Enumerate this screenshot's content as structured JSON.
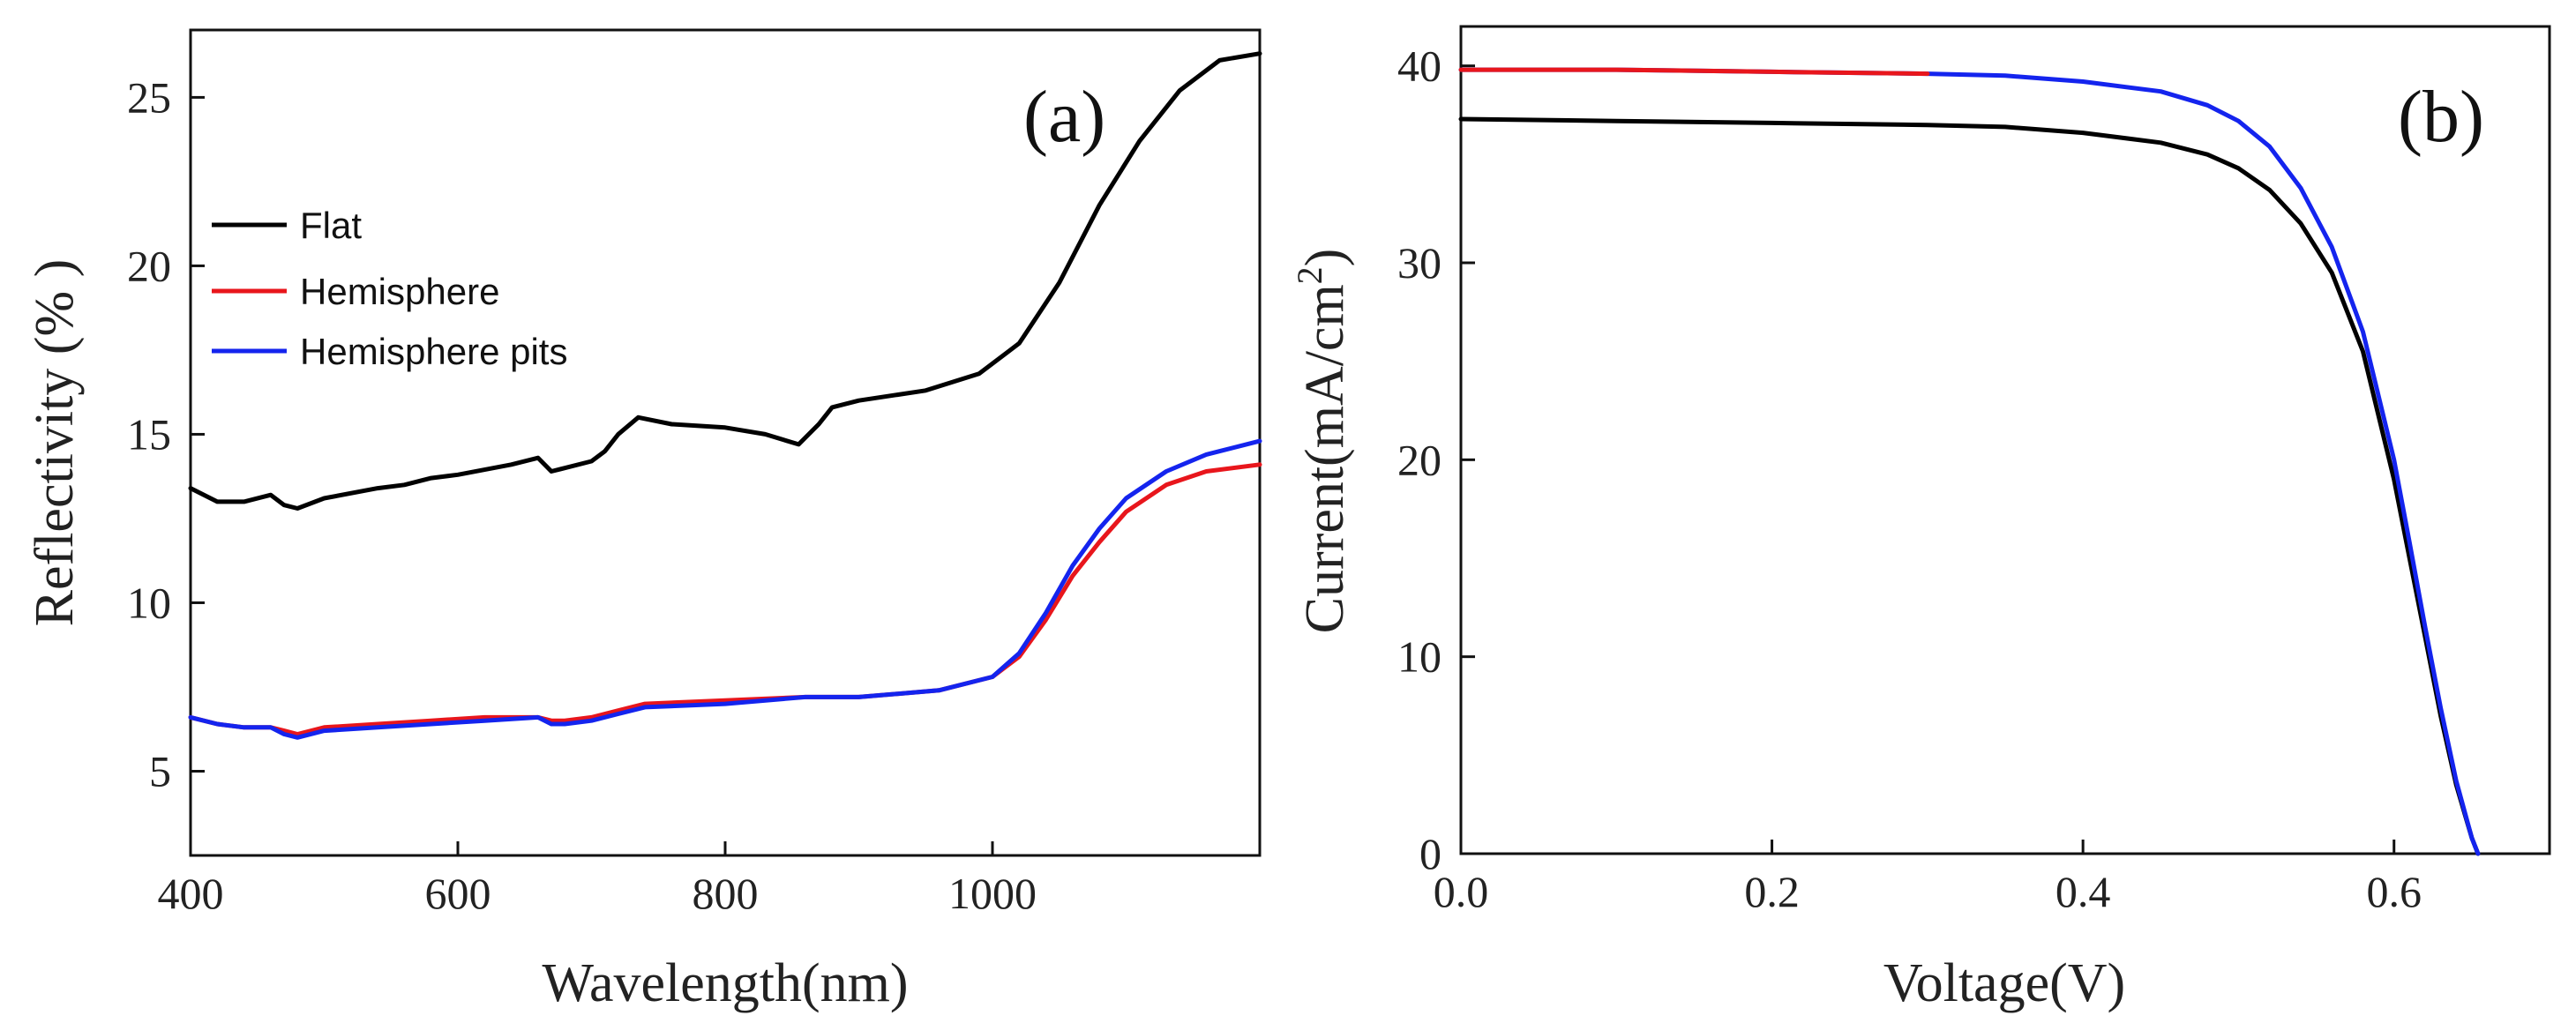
{
  "chart_data": [
    {
      "type": "line",
      "panel_label": "(a)",
      "title": "",
      "xlabel": "Wavelength(nm)",
      "ylabel": "Reflectivity (% )",
      "xlim": [
        400,
        1200
      ],
      "ylim": [
        2.5,
        27
      ],
      "xticks": [
        400,
        600,
        800,
        1000
      ],
      "xtick_labels": [
        "400",
        "600",
        "800",
        "1000"
      ],
      "yticks": [
        5,
        10,
        15,
        20,
        25
      ],
      "ytick_labels": [
        "5",
        "10",
        "15",
        "20",
        "25"
      ],
      "grid": false,
      "legend_position": "middle-left",
      "series": [
        {
          "name": "Flat",
          "color": "#000000",
          "x": [
            400,
            420,
            440,
            460,
            470,
            480,
            500,
            540,
            560,
            580,
            600,
            640,
            660,
            670,
            680,
            700,
            710,
            720,
            735,
            760,
            800,
            830,
            855,
            870,
            880,
            900,
            950,
            990,
            1020,
            1050,
            1080,
            1110,
            1140,
            1170,
            1200
          ],
          "values": [
            13.4,
            13.0,
            13.0,
            13.2,
            12.9,
            12.8,
            13.1,
            13.4,
            13.5,
            13.7,
            13.8,
            14.1,
            14.3,
            13.9,
            14.0,
            14.2,
            14.5,
            15.0,
            15.5,
            15.3,
            15.2,
            15.0,
            14.7,
            15.3,
            15.8,
            16.0,
            16.3,
            16.8,
            17.7,
            19.5,
            21.8,
            23.7,
            25.2,
            26.1,
            26.3
          ]
        },
        {
          "name": "Hemisphere",
          "color": "#e8161c",
          "x": [
            400,
            420,
            440,
            460,
            470,
            480,
            500,
            540,
            580,
            620,
            660,
            670,
            680,
            700,
            720,
            740,
            800,
            860,
            900,
            960,
            1000,
            1020,
            1040,
            1060,
            1080,
            1100,
            1130,
            1160,
            1200
          ],
          "values": [
            6.6,
            6.4,
            6.3,
            6.3,
            6.2,
            6.1,
            6.3,
            6.4,
            6.5,
            6.6,
            6.6,
            6.5,
            6.5,
            6.6,
            6.8,
            7.0,
            7.1,
            7.2,
            7.2,
            7.4,
            7.8,
            8.4,
            9.5,
            10.8,
            11.8,
            12.7,
            13.5,
            13.9,
            14.1
          ]
        },
        {
          "name": "Hemisphere pits",
          "color": "#1424ee",
          "x": [
            400,
            420,
            440,
            460,
            470,
            480,
            500,
            540,
            580,
            620,
            660,
            670,
            680,
            700,
            720,
            740,
            800,
            860,
            900,
            960,
            1000,
            1020,
            1040,
            1060,
            1080,
            1100,
            1130,
            1160,
            1200
          ],
          "values": [
            6.6,
            6.4,
            6.3,
            6.3,
            6.1,
            6.0,
            6.2,
            6.3,
            6.4,
            6.5,
            6.6,
            6.4,
            6.4,
            6.5,
            6.7,
            6.9,
            7.0,
            7.2,
            7.2,
            7.4,
            7.8,
            8.5,
            9.7,
            11.1,
            12.2,
            13.1,
            13.9,
            14.4,
            14.8
          ]
        }
      ]
    },
    {
      "type": "line",
      "panel_label": "(b)",
      "title": "",
      "xlabel": "Voltage(V)",
      "ylabel": "Current(mA/cm",
      "ylabel_superscript": "2",
      "ylabel_suffix": ")",
      "xlim": [
        0.0,
        0.7
      ],
      "ylim": [
        0,
        42
      ],
      "xticks": [
        0.0,
        0.2,
        0.4,
        0.6
      ],
      "xtick_labels": [
        "0.0",
        "0.2",
        "0.4",
        "0.6"
      ],
      "yticks": [
        0,
        10,
        20,
        30,
        40
      ],
      "ytick_labels": [
        "0",
        "10",
        "20",
        "30",
        "40"
      ],
      "grid": false,
      "series": [
        {
          "name": "Flat",
          "color": "#000000",
          "x": [
            0.0,
            0.1,
            0.2,
            0.3,
            0.35,
            0.4,
            0.45,
            0.48,
            0.5,
            0.52,
            0.54,
            0.56,
            0.58,
            0.6,
            0.61,
            0.62,
            0.63,
            0.64,
            0.65,
            0.654
          ],
          "values": [
            37.3,
            37.2,
            37.1,
            37.0,
            36.9,
            36.6,
            36.1,
            35.5,
            34.8,
            33.7,
            32.0,
            29.5,
            25.5,
            19.0,
            15.0,
            11.0,
            7.0,
            3.5,
            0.8,
            0.0
          ]
        },
        {
          "name": "Hemisphere pits",
          "color": "#1424ee",
          "x": [
            0.0,
            0.1,
            0.2,
            0.3,
            0.35,
            0.4,
            0.45,
            0.48,
            0.5,
            0.52,
            0.54,
            0.56,
            0.58,
            0.6,
            0.61,
            0.62,
            0.63,
            0.64,
            0.65,
            0.654
          ],
          "values": [
            39.8,
            39.8,
            39.7,
            39.6,
            39.5,
            39.2,
            38.7,
            38.0,
            37.2,
            35.9,
            33.8,
            30.8,
            26.5,
            20.0,
            15.8,
            11.5,
            7.4,
            3.7,
            0.8,
            0.0
          ]
        },
        {
          "name": "Hemisphere",
          "color": "#e8161c",
          "x": [
            0.0,
            0.1,
            0.2,
            0.3
          ],
          "values": [
            39.8,
            39.8,
            39.7,
            39.6
          ]
        }
      ]
    }
  ]
}
